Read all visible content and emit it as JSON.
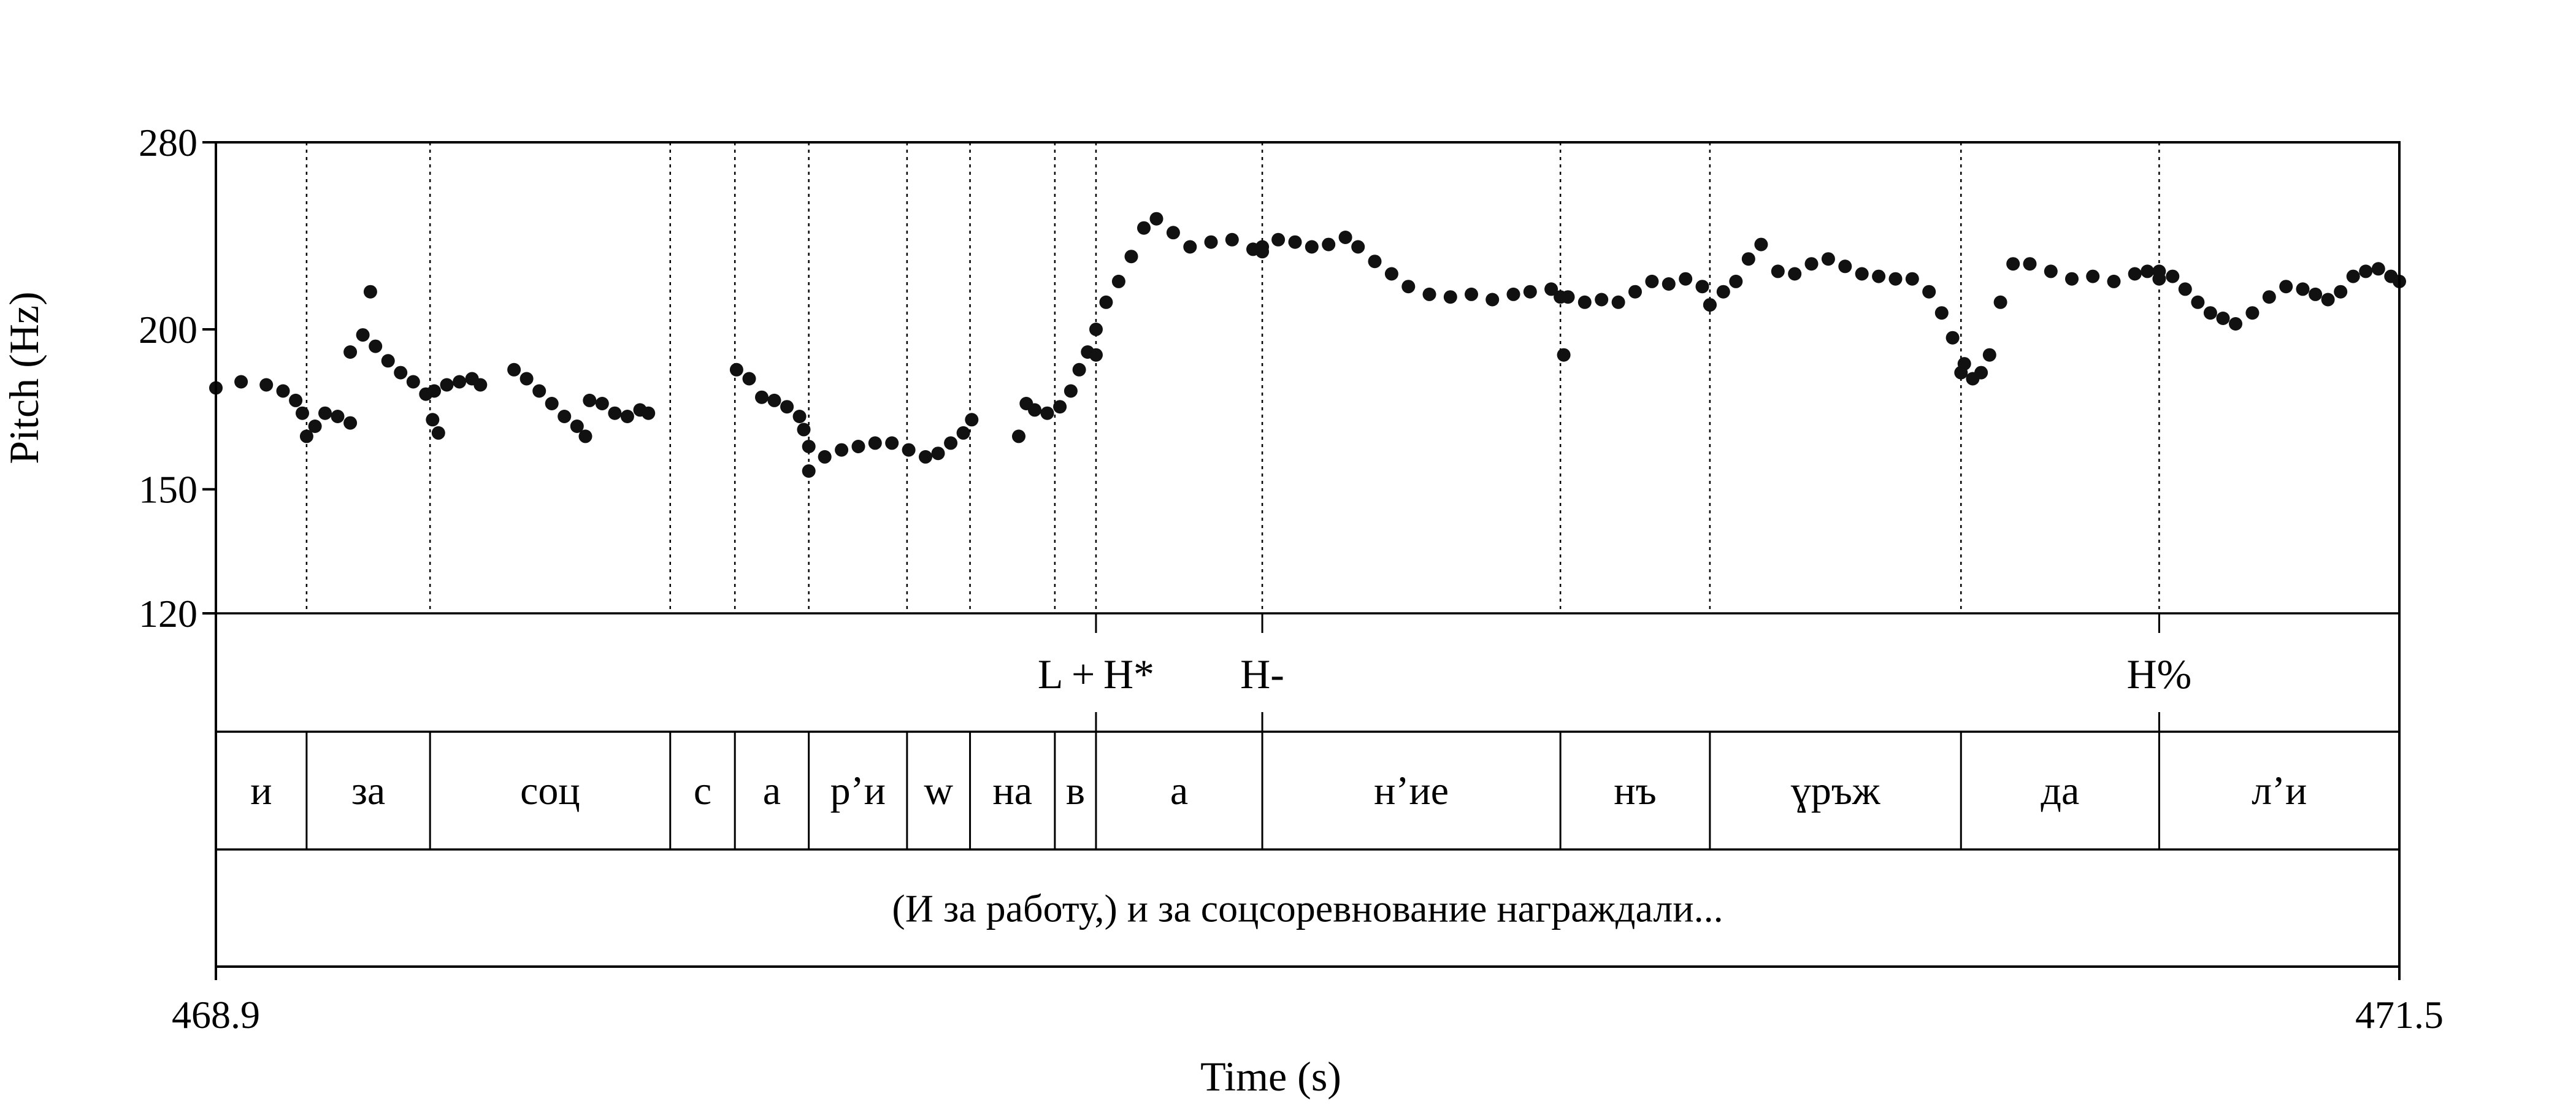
{
  "chart_data": {
    "type": "scatter",
    "title": "",
    "xlabel": "Time (s)",
    "ylabel": "Pitch (Hz)",
    "scale": "log",
    "xlim": [
      468.9,
      471.5
    ],
    "ylim": [
      120,
      280
    ],
    "yticks": [
      120,
      150,
      200,
      280
    ],
    "xticks": [
      468.9,
      471.5
    ],
    "xtick_labels": [
      "468.9",
      "471.5"
    ],
    "marker_color": "#111111",
    "boundaries": [
      469.008,
      469.155,
      469.441,
      469.518,
      469.606,
      469.723,
      469.798,
      469.899,
      469.948,
      470.146,
      470.501,
      470.679,
      470.978,
      471.214
    ],
    "tone_marks": [
      {
        "time": 469.948,
        "label": "L + H*"
      },
      {
        "time": 470.146,
        "label": "H-"
      },
      {
        "time": 471.214,
        "label": "H%"
      }
    ],
    "segments": [
      {
        "start": 468.9,
        "end": 469.008,
        "label": "и"
      },
      {
        "start": 469.008,
        "end": 469.155,
        "label": "за"
      },
      {
        "start": 469.155,
        "end": 469.441,
        "label": "соц"
      },
      {
        "start": 469.441,
        "end": 469.518,
        "label": "с"
      },
      {
        "start": 469.518,
        "end": 469.606,
        "label": "а"
      },
      {
        "start": 469.606,
        "end": 469.723,
        "label": "р’и"
      },
      {
        "start": 469.723,
        "end": 469.798,
        "label": "w"
      },
      {
        "start": 469.798,
        "end": 469.899,
        "label": "на"
      },
      {
        "start": 469.899,
        "end": 469.948,
        "label": "в"
      },
      {
        "start": 469.948,
        "end": 470.146,
        "label": "а"
      },
      {
        "start": 470.146,
        "end": 470.501,
        "label": "н’ие"
      },
      {
        "start": 470.501,
        "end": 470.679,
        "label": "нъ"
      },
      {
        "start": 470.679,
        "end": 470.978,
        "label": "ɣръж"
      },
      {
        "start": 470.978,
        "end": 471.214,
        "label": "да"
      },
      {
        "start": 471.214,
        "end": 471.5,
        "label": "л’и"
      }
    ],
    "sentence": "(И за работу,) и за соцсоревнование награждали...",
    "pitch_runs": [
      {
        "t": [
          468.9,
          468.93,
          468.96,
          468.98,
          468.995,
          469.003,
          469.008,
          469.018,
          469.03,
          469.045,
          469.06
        ],
        "f": [
          180,
          182,
          181,
          179,
          176,
          172,
          165,
          168,
          172,
          171,
          169
        ]
      },
      {
        "t": [
          469.06,
          469.075,
          469.09,
          469.105,
          469.12,
          469.135,
          469.15,
          469.158,
          469.165
        ],
        "f": [
          192,
          198,
          194,
          189,
          185,
          182,
          178,
          170,
          166
        ]
      },
      {
        "t": [
          469.084
        ],
        "f": [
          214
        ]
      },
      {
        "t": [
          469.16,
          469.175,
          469.19,
          469.205,
          469.215
        ],
        "f": [
          179,
          181,
          182,
          183,
          181
        ]
      },
      {
        "t": [
          469.255,
          469.27,
          469.285,
          469.3,
          469.315,
          469.33,
          469.34
        ],
        "f": [
          186,
          183,
          179,
          175,
          171,
          168,
          165
        ]
      },
      {
        "t": [
          469.345,
          469.36,
          469.375,
          469.39,
          469.405,
          469.415
        ],
        "f": [
          176,
          175,
          172,
          171,
          173,
          172
        ]
      },
      {
        "t": [
          469.52,
          469.535,
          469.55,
          469.565,
          469.58,
          469.595,
          469.6,
          469.606
        ],
        "f": [
          186,
          183,
          177,
          176,
          174,
          171,
          167,
          162
        ]
      },
      {
        "t": [
          469.606,
          469.625,
          469.645,
          469.665,
          469.685,
          469.705,
          469.725,
          469.745,
          469.76,
          469.775,
          469.79,
          469.8
        ],
        "f": [
          155,
          159,
          161,
          162,
          163,
          163,
          161,
          159,
          160,
          163,
          166,
          170
        ]
      },
      {
        "t": [
          469.856,
          469.865,
          469.875,
          469.89,
          469.905,
          469.918,
          469.928,
          469.938,
          469.948
        ],
        "f": [
          165,
          175,
          173,
          172,
          174,
          179,
          186,
          192,
          191
        ]
      },
      {
        "t": [
          469.948,
          469.96,
          469.975,
          469.99,
          470.005,
          470.02,
          470.04,
          470.06,
          470.085,
          470.11,
          470.135,
          470.146
        ],
        "f": [
          200,
          210,
          218,
          228,
          240,
          244,
          238,
          232,
          234,
          235,
          231,
          230
        ]
      },
      {
        "t": [
          470.146,
          470.165,
          470.185,
          470.205,
          470.225,
          470.245,
          470.26,
          470.28,
          470.3,
          470.32,
          470.345,
          470.37,
          470.395,
          470.42,
          470.445,
          470.465,
          470.49,
          470.501
        ],
        "f": [
          232,
          235,
          234,
          232,
          233,
          236,
          232,
          226,
          221,
          216,
          213,
          212,
          213,
          211,
          213,
          214,
          215,
          212
        ]
      },
      {
        "t": [
          470.505
        ],
        "f": [
          191
        ]
      },
      {
        "t": [
          470.51,
          470.53,
          470.55,
          470.57,
          470.59,
          470.61,
          470.63,
          470.65,
          470.67,
          470.679
        ],
        "f": [
          212,
          210,
          211,
          210,
          214,
          218,
          217,
          219,
          216,
          209
        ]
      },
      {
        "t": [
          470.679,
          470.695,
          470.71,
          470.725,
          470.74,
          470.76,
          470.78,
          470.8,
          470.82,
          470.84,
          470.86,
          470.88,
          470.9,
          470.92,
          470.94,
          470.955,
          470.968,
          470.978
        ],
        "f": [
          209,
          214,
          218,
          227,
          233,
          222,
          221,
          225,
          227,
          224,
          221,
          220,
          219,
          219,
          214,
          206,
          197,
          185
        ]
      },
      {
        "t": [
          470.982,
          470.992,
          471.002,
          471.012,
          471.025,
          471.04,
          471.06,
          471.085,
          471.11,
          471.135,
          471.16,
          471.185,
          471.2,
          471.214
        ],
        "f": [
          188,
          183,
          185,
          191,
          210,
          225,
          225,
          222,
          219,
          220,
          218,
          221,
          222,
          219
        ]
      },
      {
        "t": [
          471.214,
          471.23,
          471.245,
          471.26,
          471.275,
          471.29,
          471.305,
          471.325,
          471.345,
          471.365,
          471.385,
          471.4,
          471.415,
          471.43,
          471.445,
          471.46,
          471.475,
          471.49,
          471.5
        ],
        "f": [
          222,
          220,
          215,
          210,
          206,
          204,
          202,
          206,
          212,
          216,
          215,
          213,
          211,
          214,
          220,
          222,
          223,
          220,
          218
        ]
      }
    ]
  }
}
